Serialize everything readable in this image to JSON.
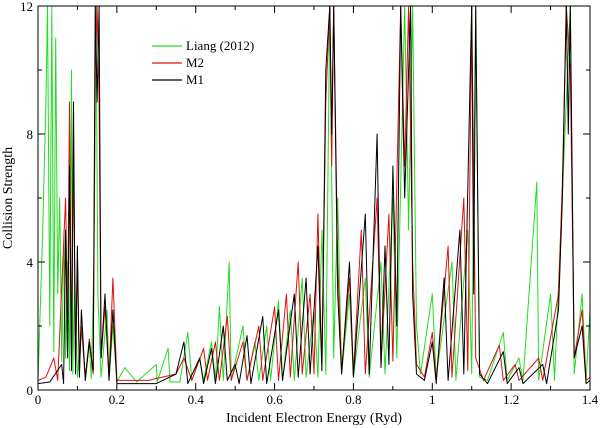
{
  "chart_data": {
    "type": "line",
    "title": "",
    "xlabel": "Incident Electron Energy (Ryd)",
    "ylabel": "Collision Strength",
    "xlim": [
      0,
      1.4
    ],
    "ylim": [
      0,
      12
    ],
    "x_ticks": [
      "0",
      "0.2",
      "0.4",
      "0.6",
      "0.8",
      "1",
      "1.2",
      "1.4"
    ],
    "y_ticks": [
      "0",
      "4",
      "8",
      "12"
    ],
    "grid": false,
    "legend_position": "top-left",
    "series": [
      {
        "name": "Liang (2012)",
        "color": "#22dd22",
        "baseline": 0.25,
        "points": [
          [
            0.0,
            0.25
          ],
          [
            0.012,
            5.0
          ],
          [
            0.02,
            9.0
          ],
          [
            0.024,
            12.0
          ],
          [
            0.03,
            2.0
          ],
          [
            0.035,
            12.0
          ],
          [
            0.04,
            1.2
          ],
          [
            0.045,
            11.0
          ],
          [
            0.05,
            3.0
          ],
          [
            0.055,
            6.0
          ],
          [
            0.06,
            0.9
          ],
          [
            0.066,
            5.0
          ],
          [
            0.07,
            1.0
          ],
          [
            0.075,
            4.0
          ],
          [
            0.08,
            0.6
          ],
          [
            0.085,
            10.0
          ],
          [
            0.088,
            0.5
          ],
          [
            0.093,
            3.5
          ],
          [
            0.1,
            0.4
          ],
          [
            0.11,
            2.0
          ],
          [
            0.12,
            0.3
          ],
          [
            0.13,
            1.5
          ],
          [
            0.135,
            0.35
          ],
          [
            0.142,
            4.0
          ],
          [
            0.147,
            12.0
          ],
          [
            0.152,
            3.0
          ],
          [
            0.16,
            0.4
          ],
          [
            0.175,
            2.5
          ],
          [
            0.18,
            0.3
          ],
          [
            0.19,
            2.0
          ],
          [
            0.2,
            0.25
          ],
          [
            0.22,
            0.7
          ],
          [
            0.25,
            0.25
          ],
          [
            0.3,
            0.8
          ],
          [
            0.302,
            0.25
          ],
          [
            0.33,
            1.3
          ],
          [
            0.335,
            0.25
          ],
          [
            0.36,
            0.25
          ],
          [
            0.38,
            1.8
          ],
          [
            0.39,
            0.3
          ],
          [
            0.41,
            1.0
          ],
          [
            0.42,
            0.3
          ],
          [
            0.44,
            1.5
          ],
          [
            0.45,
            0.3
          ],
          [
            0.46,
            2.6
          ],
          [
            0.47,
            0.3
          ],
          [
            0.485,
            4.0
          ],
          [
            0.49,
            0.3
          ],
          [
            0.52,
            2.0
          ],
          [
            0.53,
            0.3
          ],
          [
            0.55,
            1.5
          ],
          [
            0.56,
            0.3
          ],
          [
            0.58,
            2.0
          ],
          [
            0.59,
            0.3
          ],
          [
            0.61,
            2.8
          ],
          [
            0.62,
            0.3
          ],
          [
            0.64,
            2.5
          ],
          [
            0.65,
            0.3
          ],
          [
            0.67,
            3.5
          ],
          [
            0.68,
            0.4
          ],
          [
            0.7,
            2.5
          ],
          [
            0.71,
            0.4
          ],
          [
            0.72,
            5.0
          ],
          [
            0.73,
            0.5
          ],
          [
            0.74,
            12.0
          ],
          [
            0.75,
            1.0
          ],
          [
            0.76,
            6.0
          ],
          [
            0.77,
            0.5
          ],
          [
            0.79,
            3.0
          ],
          [
            0.8,
            0.4
          ],
          [
            0.83,
            3.5
          ],
          [
            0.84,
            0.4
          ],
          [
            0.87,
            4.0
          ],
          [
            0.88,
            0.5
          ],
          [
            0.9,
            6.0
          ],
          [
            0.91,
            1.0
          ],
          [
            0.93,
            12.0
          ],
          [
            0.94,
            5.0
          ],
          [
            0.95,
            12.0
          ],
          [
            0.96,
            2.0
          ],
          [
            0.97,
            0.5
          ],
          [
            1.0,
            3.0
          ],
          [
            1.01,
            0.4
          ],
          [
            1.05,
            4.0
          ],
          [
            1.06,
            0.3
          ],
          [
            1.09,
            5.0
          ],
          [
            1.1,
            0.5
          ],
          [
            1.11,
            12.0
          ],
          [
            1.12,
            0.4
          ],
          [
            1.14,
            0.3
          ],
          [
            1.18,
            1.8
          ],
          [
            1.19,
            0.3
          ],
          [
            1.22,
            1.0
          ],
          [
            1.23,
            0.3
          ],
          [
            1.265,
            6.5
          ],
          [
            1.27,
            0.3
          ],
          [
            1.3,
            3.0
          ],
          [
            1.31,
            0.3
          ],
          [
            1.35,
            12.0
          ],
          [
            1.36,
            0.5
          ],
          [
            1.38,
            3.0
          ],
          [
            1.39,
            0.3
          ],
          [
            1.4,
            2.5
          ]
        ]
      },
      {
        "name": "M2",
        "color": "#dd1111",
        "baseline": 0.3,
        "points": [
          [
            0.0,
            0.3
          ],
          [
            0.02,
            0.4
          ],
          [
            0.04,
            1.0
          ],
          [
            0.05,
            0.3
          ],
          [
            0.07,
            6.0
          ],
          [
            0.075,
            2.0
          ],
          [
            0.08,
            9.0
          ],
          [
            0.085,
            1.0
          ],
          [
            0.09,
            7.5
          ],
          [
            0.095,
            0.8
          ],
          [
            0.1,
            4.0
          ],
          [
            0.105,
            0.6
          ],
          [
            0.11,
            2.0
          ],
          [
            0.12,
            0.4
          ],
          [
            0.13,
            1.6
          ],
          [
            0.14,
            0.5
          ],
          [
            0.145,
            10.0
          ],
          [
            0.15,
            12.0
          ],
          [
            0.155,
            9.0
          ],
          [
            0.16,
            1.0
          ],
          [
            0.17,
            2.6
          ],
          [
            0.18,
            0.4
          ],
          [
            0.19,
            3.5
          ],
          [
            0.2,
            0.3
          ],
          [
            0.23,
            0.3
          ],
          [
            0.28,
            0.3
          ],
          [
            0.35,
            0.5
          ],
          [
            0.37,
            1.0
          ],
          [
            0.39,
            0.3
          ],
          [
            0.42,
            1.3
          ],
          [
            0.43,
            0.3
          ],
          [
            0.45,
            1.5
          ],
          [
            0.46,
            0.3
          ],
          [
            0.48,
            2.3
          ],
          [
            0.49,
            0.3
          ],
          [
            0.52,
            1.5
          ],
          [
            0.53,
            0.3
          ],
          [
            0.56,
            2.0
          ],
          [
            0.57,
            0.3
          ],
          [
            0.6,
            2.6
          ],
          [
            0.61,
            0.3
          ],
          [
            0.63,
            3.0
          ],
          [
            0.64,
            0.4
          ],
          [
            0.66,
            4.0
          ],
          [
            0.67,
            0.5
          ],
          [
            0.69,
            3.0
          ],
          [
            0.7,
            0.5
          ],
          [
            0.71,
            5.5
          ],
          [
            0.72,
            0.8
          ],
          [
            0.73,
            9.0
          ],
          [
            0.74,
            12.0
          ],
          [
            0.745,
            7.0
          ],
          [
            0.75,
            12.0
          ],
          [
            0.76,
            4.0
          ],
          [
            0.77,
            0.6
          ],
          [
            0.79,
            3.5
          ],
          [
            0.8,
            0.5
          ],
          [
            0.82,
            5.0
          ],
          [
            0.83,
            0.5
          ],
          [
            0.86,
            6.0
          ],
          [
            0.87,
            0.8
          ],
          [
            0.89,
            5.5
          ],
          [
            0.9,
            0.9
          ],
          [
            0.92,
            12.0
          ],
          [
            0.93,
            7.0
          ],
          [
            0.94,
            12.0
          ],
          [
            0.95,
            4.0
          ],
          [
            0.96,
            0.8
          ],
          [
            0.98,
            0.4
          ],
          [
            1.0,
            1.8
          ],
          [
            1.01,
            0.3
          ],
          [
            1.04,
            4.5
          ],
          [
            1.05,
            0.4
          ],
          [
            1.08,
            6.0
          ],
          [
            1.09,
            0.6
          ],
          [
            1.1,
            12.0
          ],
          [
            1.11,
            1.0
          ],
          [
            1.13,
            0.3
          ],
          [
            1.17,
            1.4
          ],
          [
            1.18,
            0.3
          ],
          [
            1.21,
            0.8
          ],
          [
            1.22,
            0.3
          ],
          [
            1.27,
            1.0
          ],
          [
            1.28,
            0.3
          ],
          [
            1.32,
            3.0
          ],
          [
            1.33,
            6.5
          ],
          [
            1.34,
            12.0
          ],
          [
            1.35,
            10.0
          ],
          [
            1.36,
            1.0
          ],
          [
            1.38,
            2.5
          ],
          [
            1.39,
            0.3
          ],
          [
            1.4,
            0.4
          ]
        ]
      },
      {
        "name": "M1",
        "color": "#000000",
        "baseline": 0.2,
        "points": [
          [
            0.0,
            0.2
          ],
          [
            0.03,
            0.25
          ],
          [
            0.06,
            0.8
          ],
          [
            0.065,
            0.2
          ],
          [
            0.07,
            5.0
          ],
          [
            0.075,
            1.0
          ],
          [
            0.08,
            7.0
          ],
          [
            0.085,
            0.6
          ],
          [
            0.09,
            9.0
          ],
          [
            0.095,
            0.5
          ],
          [
            0.1,
            4.5
          ],
          [
            0.105,
            0.4
          ],
          [
            0.11,
            2.5
          ],
          [
            0.12,
            0.3
          ],
          [
            0.13,
            1.5
          ],
          [
            0.14,
            0.6
          ],
          [
            0.145,
            12.0
          ],
          [
            0.15,
            9.0
          ],
          [
            0.155,
            12.0
          ],
          [
            0.16,
            1.0
          ],
          [
            0.17,
            3.0
          ],
          [
            0.18,
            0.3
          ],
          [
            0.19,
            2.5
          ],
          [
            0.2,
            0.2
          ],
          [
            0.25,
            0.2
          ],
          [
            0.3,
            0.2
          ],
          [
            0.35,
            0.5
          ],
          [
            0.37,
            1.5
          ],
          [
            0.38,
            0.2
          ],
          [
            0.41,
            1.0
          ],
          [
            0.42,
            0.2
          ],
          [
            0.44,
            1.3
          ],
          [
            0.45,
            0.2
          ],
          [
            0.47,
            2.0
          ],
          [
            0.48,
            0.3
          ],
          [
            0.5,
            0.8
          ],
          [
            0.51,
            0.2
          ],
          [
            0.53,
            1.7
          ],
          [
            0.54,
            0.2
          ],
          [
            0.57,
            2.3
          ],
          [
            0.58,
            0.2
          ],
          [
            0.61,
            2.5
          ],
          [
            0.62,
            0.3
          ],
          [
            0.65,
            3.0
          ],
          [
            0.66,
            0.4
          ],
          [
            0.68,
            3.5
          ],
          [
            0.69,
            0.5
          ],
          [
            0.71,
            4.5
          ],
          [
            0.72,
            0.6
          ],
          [
            0.73,
            10.0
          ],
          [
            0.74,
            12.0
          ],
          [
            0.745,
            8.0
          ],
          [
            0.75,
            12.0
          ],
          [
            0.76,
            3.0
          ],
          [
            0.77,
            0.5
          ],
          [
            0.79,
            4.0
          ],
          [
            0.8,
            0.4
          ],
          [
            0.83,
            5.5
          ],
          [
            0.84,
            0.5
          ],
          [
            0.86,
            8.0
          ],
          [
            0.87,
            0.7
          ],
          [
            0.88,
            4.5
          ],
          [
            0.89,
            0.8
          ],
          [
            0.9,
            7.0
          ],
          [
            0.91,
            2.0
          ],
          [
            0.92,
            12.0
          ],
          [
            0.93,
            6.0
          ],
          [
            0.945,
            12.0
          ],
          [
            0.95,
            3.0
          ],
          [
            0.96,
            0.5
          ],
          [
            0.98,
            0.3
          ],
          [
            1.0,
            1.5
          ],
          [
            1.01,
            0.2
          ],
          [
            1.03,
            3.5
          ],
          [
            1.04,
            0.3
          ],
          [
            1.07,
            5.0
          ],
          [
            1.08,
            0.5
          ],
          [
            1.1,
            12.0
          ],
          [
            1.105,
            3.0
          ],
          [
            1.11,
            12.0
          ],
          [
            1.12,
            0.5
          ],
          [
            1.14,
            0.2
          ],
          [
            1.18,
            1.2
          ],
          [
            1.19,
            0.2
          ],
          [
            1.22,
            0.7
          ],
          [
            1.23,
            0.2
          ],
          [
            1.28,
            0.8
          ],
          [
            1.29,
            0.2
          ],
          [
            1.32,
            2.5
          ],
          [
            1.33,
            6.0
          ],
          [
            1.34,
            12.0
          ],
          [
            1.345,
            8.0
          ],
          [
            1.35,
            12.0
          ],
          [
            1.36,
            1.0
          ],
          [
            1.38,
            2.0
          ],
          [
            1.39,
            0.2
          ],
          [
            1.4,
            0.3
          ]
        ]
      }
    ]
  }
}
